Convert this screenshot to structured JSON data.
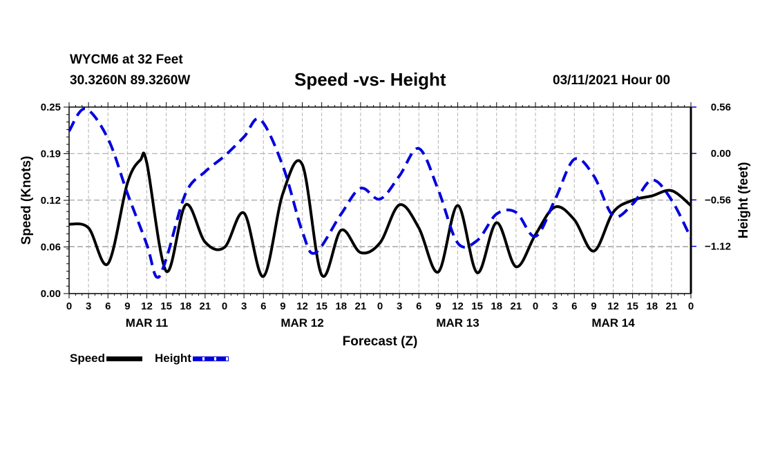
{
  "header": {
    "station": "WYCM6 at 32 Feet",
    "coords": "30.3260N 89.3260W",
    "title": "Speed -vs- Height",
    "issued": "03/11/2021 Hour 00"
  },
  "legend": {
    "speed_label": "Speed",
    "height_label": "Height"
  },
  "colors": {
    "speed": "#000000",
    "height": "#0000dd",
    "grid": "#b4b4b4"
  },
  "chart_data": {
    "type": "line",
    "title": "Speed -vs- Height",
    "xlabel": "Forecast (Z)",
    "ylabel": "Speed (Knots)",
    "y2label": "Height (feet)",
    "xlim": [
      0,
      96
    ],
    "ylim": [
      0,
      0.25
    ],
    "y2lim": [
      -1.69,
      0.56
    ],
    "grid": true,
    "legend_position": "bottom-left",
    "x_tick_labels": [
      "0",
      "3",
      "6",
      "9",
      "12",
      "15",
      "18",
      "21",
      "0",
      "3",
      "6",
      "9",
      "12",
      "15",
      "18",
      "21",
      "0",
      "3",
      "6",
      "9",
      "12",
      "15",
      "18",
      "21",
      "0",
      "3",
      "6",
      "9",
      "12",
      "15",
      "18",
      "21",
      "0"
    ],
    "date_labels": [
      {
        "label": "MAR 11",
        "hour": 12
      },
      {
        "label": "MAR 12",
        "hour": 36
      },
      {
        "label": "MAR 13",
        "hour": 60
      },
      {
        "label": "MAR 14",
        "hour": 84
      }
    ],
    "y_ticks": [
      {
        "value": 0.0,
        "label": "0.00"
      },
      {
        "value": 0.0625,
        "label": "0.06"
      },
      {
        "value": 0.125,
        "label": "0.12"
      },
      {
        "value": 0.1875,
        "label": "0.19"
      },
      {
        "value": 0.25,
        "label": "0.25"
      }
    ],
    "y2_ticks": [
      {
        "value": 0.56,
        "label": "0.56"
      },
      {
        "value": 0.0,
        "label": "0.00"
      },
      {
        "value": -0.56,
        "label": "−0.56"
      },
      {
        "value": -1.12,
        "label": "−1.12"
      }
    ],
    "series": [
      {
        "name": "Speed",
        "axis": "left",
        "style": "solid",
        "x": [
          0,
          3,
          6,
          9,
          11,
          12,
          15,
          18,
          21,
          24,
          27,
          30,
          33,
          36,
          39,
          42,
          45,
          48,
          51,
          54,
          57,
          60,
          63,
          66,
          69,
          72,
          75,
          78,
          81,
          84,
          87,
          90,
          93,
          96
        ],
        "values": [
          0.093,
          0.088,
          0.04,
          0.148,
          0.179,
          0.175,
          0.03,
          0.119,
          0.069,
          0.062,
          0.108,
          0.023,
          0.134,
          0.173,
          0.025,
          0.085,
          0.055,
          0.068,
          0.119,
          0.088,
          0.029,
          0.118,
          0.028,
          0.095,
          0.036,
          0.079,
          0.116,
          0.099,
          0.057,
          0.109,
          0.125,
          0.131,
          0.138,
          0.118
        ]
      },
      {
        "name": "Height",
        "axis": "right",
        "style": "dashed",
        "x": [
          0,
          2.5,
          6,
          9,
          12,
          13.5,
          15,
          18,
          21,
          24,
          27,
          29.5,
          33,
          36,
          38,
          42,
          45,
          48,
          51,
          54,
          57,
          60,
          63,
          66,
          69,
          72,
          75,
          78,
          81,
          84,
          87,
          90,
          93,
          96
        ],
        "values": [
          0.27,
          0.54,
          0.18,
          -0.48,
          -1.1,
          -1.49,
          -1.27,
          -0.48,
          -0.22,
          -0.03,
          0.2,
          0.41,
          -0.15,
          -0.94,
          -1.2,
          -0.73,
          -0.42,
          -0.55,
          -0.27,
          0.06,
          -0.44,
          -1.08,
          -1.05,
          -0.73,
          -0.71,
          -1.0,
          -0.56,
          -0.07,
          -0.27,
          -0.75,
          -0.61,
          -0.32,
          -0.56,
          -1.02
        ]
      }
    ]
  }
}
